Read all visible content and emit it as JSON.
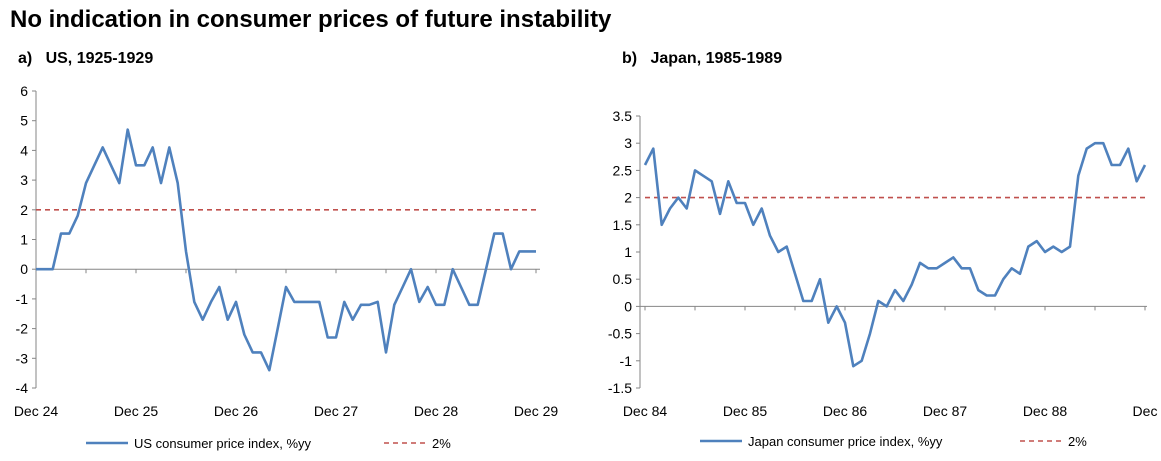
{
  "title": "No indication in consumer prices of future instability",
  "panels": [
    {
      "label": "a)",
      "title": "US, 1925-1929"
    },
    {
      "label": "b)",
      "title": "Japan, 1985-1989"
    }
  ],
  "chart_data": [
    {
      "type": "line",
      "title": "US, 1925-1929",
      "x_tick_labels": [
        "Dec 24",
        "Dec 25",
        "Dec 26",
        "Dec 27",
        "Dec 28",
        "Dec 29"
      ],
      "ylim": [
        -4,
        6
      ],
      "y_ticks": [
        6,
        5,
        4,
        3,
        2,
        1,
        0,
        -1,
        -2,
        -3,
        -4
      ],
      "series": [
        {
          "name": "US consumer price index, %yy",
          "color": "#4F81BD",
          "values": [
            0,
            0,
            0,
            1.2,
            1.2,
            1.8,
            2.9,
            3.5,
            4.1,
            3.5,
            2.9,
            4.7,
            3.5,
            3.5,
            4.1,
            2.9,
            4.1,
            2.9,
            0.6,
            -1.1,
            -1.7,
            -1.1,
            -0.6,
            -1.7,
            -1.1,
            -2.2,
            -2.8,
            -2.8,
            -3.4,
            -2.0,
            -0.6,
            -1.1,
            -1.1,
            -1.1,
            -1.1,
            -2.3,
            -2.3,
            -1.1,
            -1.7,
            -1.2,
            -1.2,
            -1.1,
            -2.8,
            -1.2,
            -0.6,
            0,
            -1.1,
            -0.6,
            -1.2,
            -1.2,
            0,
            -0.6,
            -1.2,
            -1.2,
            0,
            1.2,
            1.2,
            0,
            0.6,
            0.6,
            0.6
          ]
        },
        {
          "name": "2%",
          "color": "#C0504D",
          "dashed": true,
          "value": 2
        }
      ],
      "legend_position": "bottom"
    },
    {
      "type": "line",
      "title": "Japan, 1985-1989",
      "x_tick_labels": [
        "Dec 84",
        "Dec 85",
        "Dec 86",
        "Dec 87",
        "Dec 88",
        "Dec"
      ],
      "ylim": [
        -1.5,
        3.5
      ],
      "y_ticks": [
        3.5,
        3,
        2.5,
        2,
        1.5,
        1,
        0.5,
        0,
        -0.5,
        -1,
        -1.5
      ],
      "series": [
        {
          "name": "Japan consumer price index, %yy",
          "color": "#4F81BD",
          "values": [
            2.6,
            2.9,
            1.5,
            1.8,
            2.0,
            1.8,
            2.5,
            2.4,
            2.3,
            1.7,
            2.3,
            1.9,
            1.9,
            1.5,
            1.8,
            1.3,
            1.0,
            1.1,
            0.6,
            0.1,
            0.1,
            0.5,
            -0.3,
            0.0,
            -0.3,
            -1.1,
            -1.0,
            -0.5,
            0.1,
            0.0,
            0.3,
            0.1,
            0.4,
            0.8,
            0.7,
            0.7,
            0.8,
            0.9,
            0.7,
            0.7,
            0.3,
            0.2,
            0.2,
            0.5,
            0.7,
            0.6,
            1.1,
            1.2,
            1.0,
            1.1,
            1.0,
            1.1,
            2.4,
            2.9,
            3.0,
            3.0,
            2.6,
            2.6,
            2.9,
            2.3,
            2.6
          ]
        },
        {
          "name": "2%",
          "color": "#C0504D",
          "dashed": true,
          "value": 2
        }
      ],
      "legend_position": "bottom"
    }
  ]
}
